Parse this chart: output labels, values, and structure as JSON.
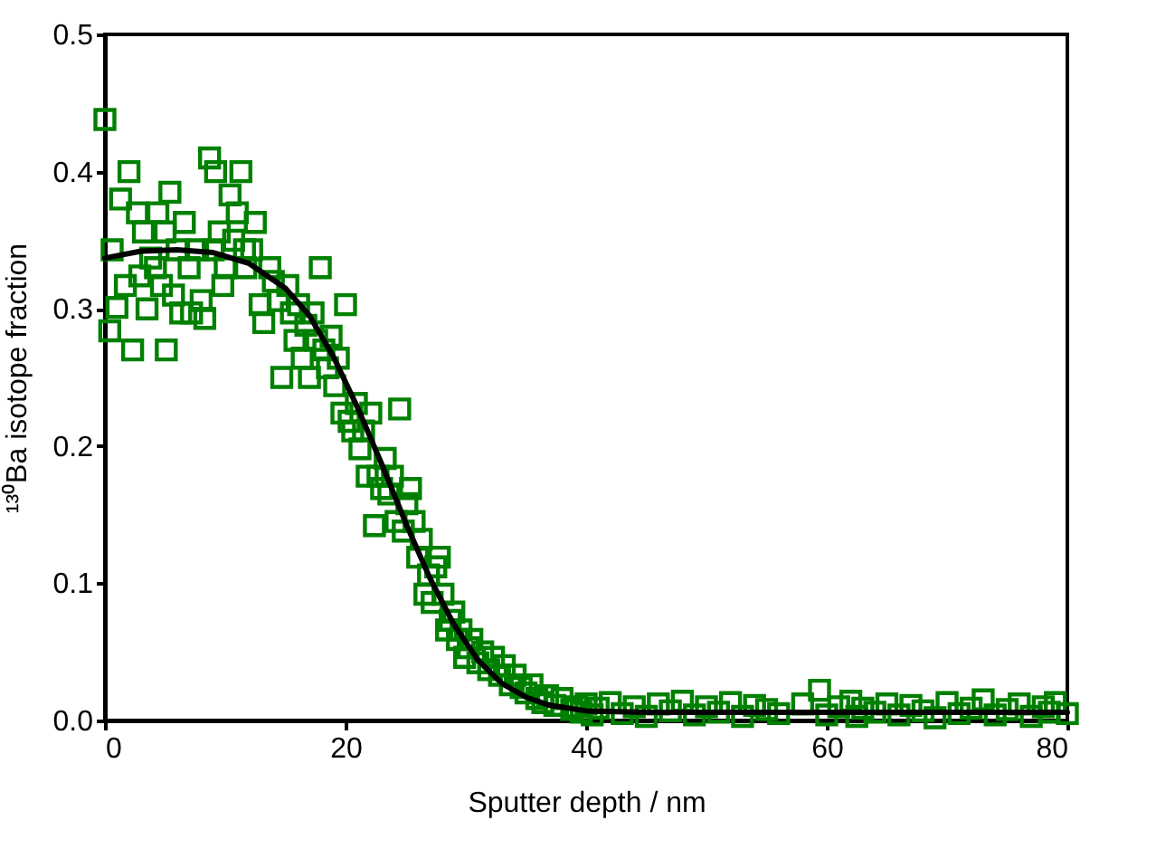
{
  "chart_data": {
    "type": "scatter",
    "xlabel": "Sputter depth / nm",
    "ylabel": "¹³⁰Ba isotope fraction",
    "xlim": [
      0,
      80
    ],
    "xticks": [
      0,
      20,
      40,
      60,
      80
    ],
    "ylim": [
      0,
      0.5
    ],
    "yticks": [
      {
        "value": 0,
        "label": "0.0"
      },
      0.1,
      0.2,
      0.3,
      0.4,
      0.5
    ],
    "grid": false,
    "series": [
      {
        "marker": "square",
        "color": "#008000",
        "x": [
          0,
          0.4,
          0.6,
          1,
          1.3,
          2,
          1.7,
          2.3,
          2.7,
          2.9,
          3.2,
          3.5,
          3.8,
          4.2,
          4.4,
          4.7,
          5,
          5.1,
          5.4,
          5.7,
          6,
          6.3,
          6.6,
          7,
          7.2,
          7.7,
          8,
          8.3,
          8.7,
          9,
          9.2,
          9.5,
          9.8,
          10,
          10.4,
          10.7,
          11,
          11.3,
          11.6,
          11.7,
          12.2,
          12.5,
          12.9,
          13.2,
          13.7,
          14,
          14.4,
          14.7,
          15.2,
          15.5,
          15.8,
          16.1,
          16.4,
          16.7,
          17,
          17.3,
          17.6,
          17.9,
          18.2,
          18.5,
          18.8,
          19.1,
          19.4,
          19.7,
          20,
          20.3,
          20.6,
          20.9,
          21.2,
          21.5,
          21.8,
          22.1,
          22.4,
          22.7,
          23,
          23.3,
          23.6,
          23.9,
          24.2,
          24.5,
          24.8,
          25.1,
          25.4,
          25.7,
          26,
          26.3,
          26.6,
          26.9,
          27.2,
          27.5,
          27.8,
          28.1,
          28.4,
          28.7,
          29,
          29.3,
          29.6,
          29.9,
          30.2,
          30.5,
          31,
          31.4,
          31.9,
          32.3,
          32.8,
          33.2,
          33.7,
          34.1,
          34.6,
          35,
          35.5,
          35.9,
          36.4,
          36.8,
          37.4,
          38,
          38.8,
          39.2,
          39.6,
          40,
          40.5,
          41,
          42,
          43,
          44,
          45,
          46,
          47,
          48,
          49,
          50,
          51,
          52,
          53,
          54,
          55,
          56,
          58,
          59.4,
          60,
          61,
          62,
          62.5,
          63,
          64,
          65,
          66,
          67,
          68,
          69,
          70,
          71,
          72,
          73,
          74,
          75,
          76,
          77,
          78,
          78.5,
          79,
          80
        ],
        "values": [
          0.438,
          0.284,
          0.343,
          0.301,
          0.38,
          0.4,
          0.317,
          0.27,
          0.37,
          0.324,
          0.356,
          0.3,
          0.337,
          0.33,
          0.37,
          0.317,
          0.356,
          0.27,
          0.385,
          0.31,
          0.343,
          0.297,
          0.363,
          0.33,
          0.297,
          0.343,
          0.306,
          0.293,
          0.41,
          0.343,
          0.4,
          0.356,
          0.317,
          0.33,
          0.383,
          0.35,
          0.37,
          0.4,
          0.343,
          0.33,
          0.343,
          0.363,
          0.303,
          0.29,
          0.33,
          0.32,
          0.306,
          0.25,
          0.317,
          0.297,
          0.277,
          0.303,
          0.264,
          0.288,
          0.25,
          0.297,
          0.277,
          0.33,
          0.27,
          0.257,
          0.28,
          0.244,
          0.264,
          0.224,
          0.303,
          0.218,
          0.211,
          0.231,
          0.198,
          0.211,
          0.178,
          0.224,
          0.142,
          0.178,
          0.169,
          0.191,
          0.165,
          0.178,
          0.145,
          0.227,
          0.138,
          0.158,
          0.169,
          0.145,
          0.119,
          0.132,
          0.092,
          0.106,
          0.086,
          0.112,
          0.119,
          0.092,
          0.066,
          0.073,
          0.079,
          0.059,
          0.066,
          0.046,
          0.053,
          0.059,
          0.042,
          0.05,
          0.037,
          0.046,
          0.033,
          0.04,
          0.026,
          0.033,
          0.024,
          0.02,
          0.026,
          0.016,
          0.013,
          0.018,
          0.011,
          0.016,
          0.008,
          0.01,
          0.006,
          0.012,
          0.004,
          0.009,
          0.013,
          0.005,
          0.01,
          0.003,
          0.012,
          0.007,
          0.014,
          0.004,
          0.01,
          0.006,
          0.013,
          0.003,
          0.011,
          0.008,
          0.005,
          0.012,
          0.022,
          0.004,
          0.01,
          0.014,
          0.003,
          0.009,
          0.006,
          0.012,
          0.004,
          0.011,
          0.007,
          0.002,
          0.013,
          0.005,
          0.009,
          0.015,
          0.004,
          0.008,
          0.012,
          0.003,
          0.01,
          0.006,
          0.013,
          0.005
        ]
      },
      {
        "type": "line",
        "color": "#000000",
        "marker": "none",
        "line_style": "solid",
        "x": [
          0,
          3,
          6,
          9,
          12,
          15,
          17,
          19,
          21,
          23,
          25,
          27,
          29,
          31,
          33,
          35,
          37,
          40,
          45,
          60,
          80
        ],
        "values": [
          0.337,
          0.342,
          0.343,
          0.341,
          0.333,
          0.315,
          0.295,
          0.265,
          0.228,
          0.187,
          0.144,
          0.104,
          0.07,
          0.044,
          0.027,
          0.017,
          0.011,
          0.007,
          0.006,
          0.006,
          0.006
        ]
      }
    ]
  }
}
